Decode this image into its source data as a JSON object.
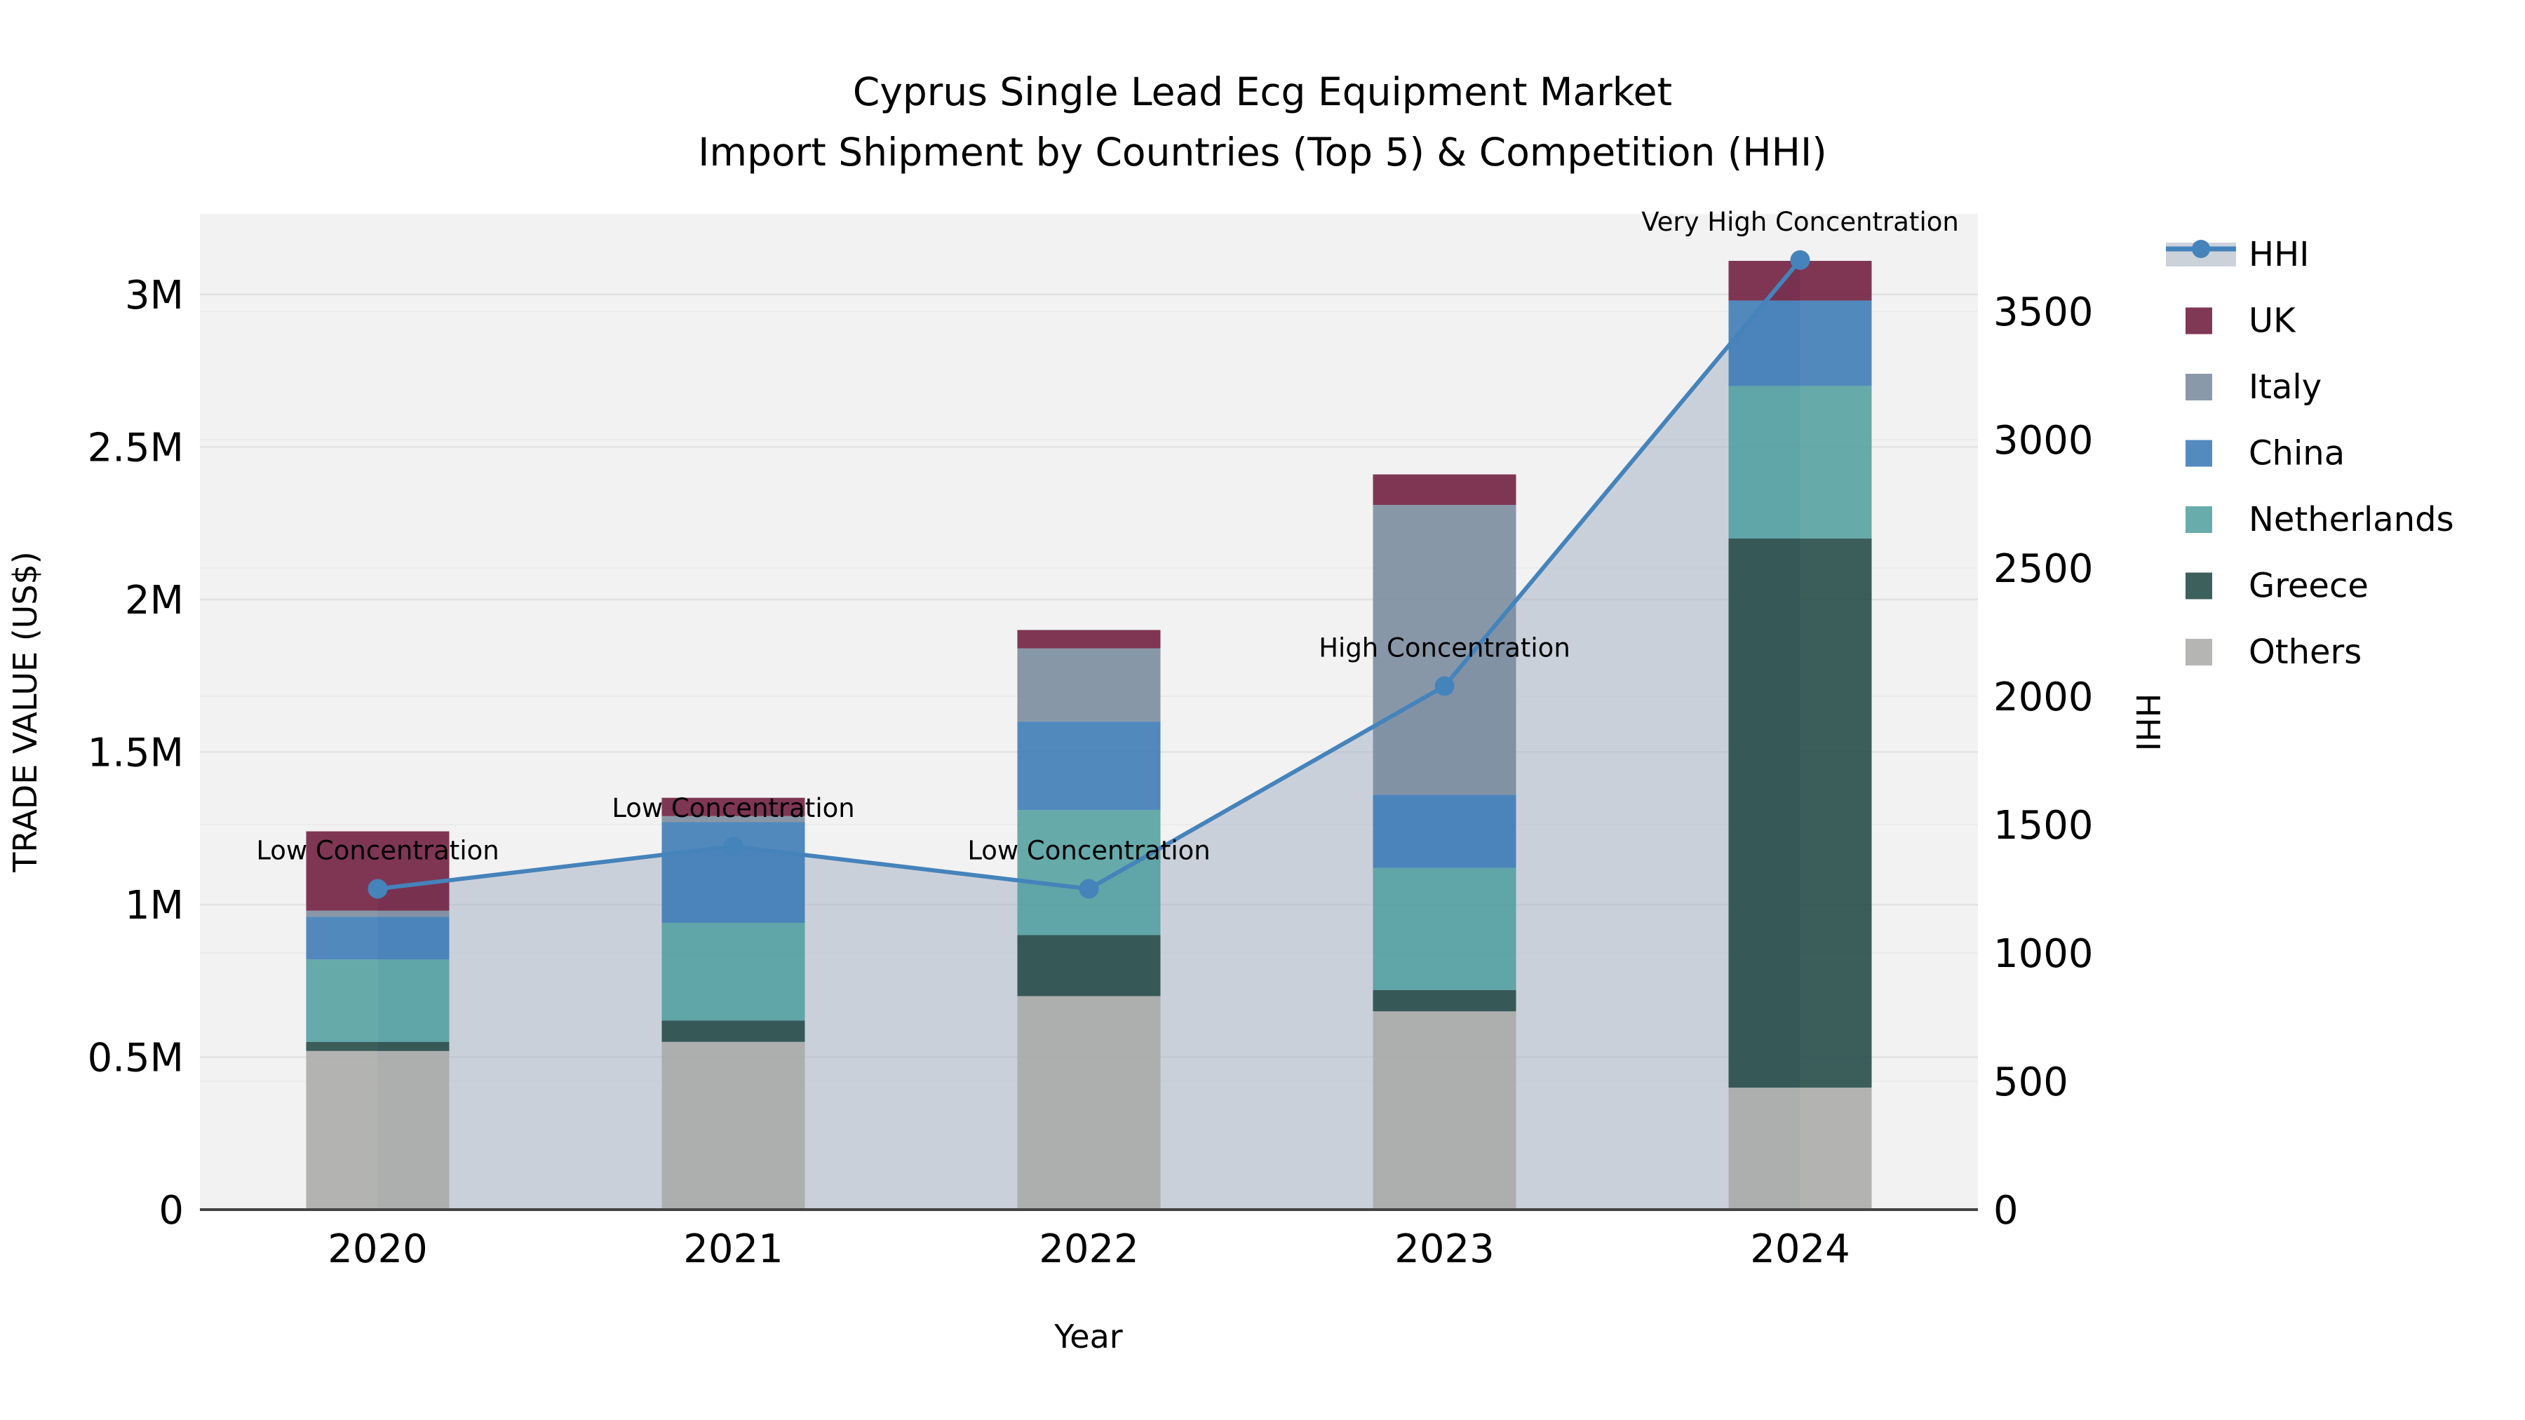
{
  "figure": {
    "title_line1": "Cyprus Single Lead Ecg Equipment Market",
    "title_line2": "Import Shipment by Countries (Top 5) & Competition (HHI)"
  },
  "chart_data": {
    "type": "bar",
    "subtype": "stacked-bar-with-dual-axis-line",
    "title": "Cyprus Single Lead Ecg Equipment Market Import Shipment by Countries (Top 5) & Competition (HHI)",
    "xlabel": "Year",
    "ylabel_left": "TRADE VALUE (US$)",
    "ylabel_right": "HHI",
    "categories": [
      "2020",
      "2021",
      "2022",
      "2023",
      "2024"
    ],
    "values_unit": "million US$",
    "series": [
      {
        "name": "Others",
        "color": "#a8a8a6",
        "values": [
          0.52,
          0.55,
          0.7,
          0.65,
          0.4
        ]
      },
      {
        "name": "Greece",
        "color": "#1c4441",
        "values": [
          0.03,
          0.07,
          0.2,
          0.07,
          1.8
        ]
      },
      {
        "name": "Netherlands",
        "color": "#4d9d9d",
        "values": [
          0.27,
          0.32,
          0.41,
          0.4,
          0.5
        ]
      },
      {
        "name": "China",
        "color": "#3577b4",
        "values": [
          0.14,
          0.33,
          0.29,
          0.24,
          0.28
        ]
      },
      {
        "name": "Italy",
        "color": "#76879b",
        "values": [
          0.02,
          0.02,
          0.24,
          0.95,
          0.0
        ]
      },
      {
        "name": "UK",
        "color": "#6b1537",
        "values": [
          0.26,
          0.06,
          0.06,
          0.1,
          0.13
        ]
      }
    ],
    "line_series": {
      "name": "HHI",
      "color": "#4583bb",
      "area_fill": "#aab4c6",
      "area_alpha": 0.55,
      "values": [
        1250,
        1415,
        1250,
        2040,
        3700
      ],
      "annotations": [
        "Low Concentration",
        "Low Concentration",
        "Low Concentration",
        "High Concentration",
        "Very High Concentration"
      ]
    },
    "yticks_left": {
      "values": [
        0,
        0.5,
        1,
        1.5,
        2,
        2.5,
        3
      ],
      "labels": [
        "0",
        "0.5M",
        "1M",
        "1.5M",
        "2M",
        "2.5M",
        "3M"
      ]
    },
    "yticks_right": {
      "values": [
        0,
        500,
        1000,
        1500,
        2000,
        2500,
        3000,
        3500
      ],
      "labels": [
        "0",
        "500",
        "1000",
        "1500",
        "2000",
        "2500",
        "3000",
        "3500"
      ]
    },
    "ylim_left": [
      0,
      3.264
    ],
    "ylim_right": [
      0,
      3880
    ],
    "grid": true,
    "plot_bg": "#f2f2f2",
    "grid_color_major": "#e1e1e1",
    "grid_color_minor": "#ebebeb",
    "axis_line_color": "#444444",
    "bar_alpha": 0.85,
    "legend": {
      "position": "right",
      "entries": [
        {
          "label": "HHI",
          "type": "line",
          "color": "#4583bb",
          "band_color": "#ccd2da"
        },
        {
          "label": "UK",
          "type": "patch",
          "color": "#6b1537"
        },
        {
          "label": "Italy",
          "type": "patch",
          "color": "#76879b"
        },
        {
          "label": "China",
          "type": "patch",
          "color": "#3577b4"
        },
        {
          "label": "Netherlands",
          "type": "patch",
          "color": "#4d9d9d"
        },
        {
          "label": "Greece",
          "type": "patch",
          "color": "#1c4441"
        },
        {
          "label": "Others",
          "type": "patch",
          "color": "#a8a8a6"
        }
      ]
    }
  }
}
